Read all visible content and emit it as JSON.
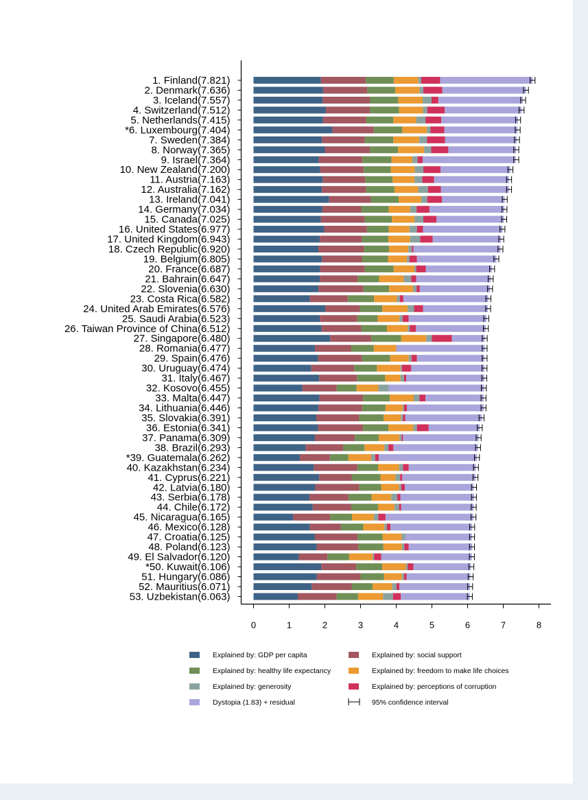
{
  "chart_data": {
    "type": "bar",
    "orientation": "horizontal",
    "stacked": true,
    "xlim": [
      0,
      8
    ],
    "x_ticks": [
      "0",
      "1",
      "2",
      "3",
      "4",
      "5",
      "6",
      "7",
      "8"
    ],
    "series": [
      {
        "name": "Explained by: GDP per capita",
        "color": "#3e6386"
      },
      {
        "name": "Explained by: social support",
        "color": "#a35760"
      },
      {
        "name": "Explained by: healthy life expectancy",
        "color": "#708f56"
      },
      {
        "name": "Explained by: freedom to make life choices",
        "color": "#ec9a33"
      },
      {
        "name": "Explained by: generosity",
        "color": "#8aa3a0"
      },
      {
        "name": "Explained by: perceptions of corruption",
        "color": "#d0315b"
      },
      {
        "name": "Dystopia (1.83) + residual",
        "color": "#aaa6dc"
      }
    ],
    "ci_legend": "95% confidence interval",
    "countries": [
      {
        "label": "1. Finland(7.821)",
        "score": 7.821,
        "values": [
          1.89,
          1.26,
          0.78,
          0.69,
          0.08,
          0.53,
          2.59
        ]
      },
      {
        "label": "2. Denmark(7.636)",
        "score": 7.636,
        "values": [
          1.95,
          1.24,
          0.78,
          0.68,
          0.11,
          0.53,
          2.35
        ]
      },
      {
        "label": "3. Iceland(7.557)",
        "score": 7.557,
        "values": [
          1.94,
          1.32,
          0.8,
          0.68,
          0.25,
          0.19,
          2.37
        ]
      },
      {
        "label": "4. Switzerland(7.512)",
        "score": 7.512,
        "values": [
          2.03,
          1.23,
          0.82,
          0.67,
          0.12,
          0.49,
          2.15
        ]
      },
      {
        "label": "5. Netherlands(7.415)",
        "score": 7.415,
        "values": [
          1.95,
          1.21,
          0.76,
          0.64,
          0.26,
          0.44,
          2.15
        ]
      },
      {
        "label": "*6. Luxembourg(7.404)",
        "score": 7.404,
        "values": [
          2.21,
          1.16,
          0.8,
          0.69,
          0.1,
          0.39,
          2.05
        ]
      },
      {
        "label": "7. Sweden(7.384)",
        "score": 7.384,
        "values": [
          1.92,
          1.2,
          0.8,
          0.72,
          0.22,
          0.51,
          2.01
        ]
      },
      {
        "label": "8. Norway(7.365)",
        "score": 7.365,
        "values": [
          2.0,
          1.26,
          0.79,
          0.73,
          0.2,
          0.48,
          1.9
        ]
      },
      {
        "label": "9. Israel(7.364)",
        "score": 7.364,
        "values": [
          1.83,
          1.22,
          0.82,
          0.58,
          0.15,
          0.14,
          2.61
        ]
      },
      {
        "label": "10. New Zealand(7.200)",
        "score": 7.2,
        "values": [
          1.87,
          1.22,
          0.76,
          0.67,
          0.24,
          0.48,
          1.96
        ]
      },
      {
        "label": "11. Austria(7.163)",
        "score": 7.163,
        "values": [
          1.94,
          1.19,
          0.77,
          0.61,
          0.22,
          0.33,
          2.1
        ]
      },
      {
        "label": "12. Australia(7.162)",
        "score": 7.162,
        "values": [
          1.92,
          1.24,
          0.79,
          0.67,
          0.27,
          0.36,
          1.91
        ]
      },
      {
        "label": "13. Ireland(7.041)",
        "score": 7.041,
        "values": [
          2.12,
          1.17,
          0.78,
          0.63,
          0.17,
          0.41,
          1.76
        ]
      },
      {
        "label": "14. Germany(7.034)",
        "score": 7.034,
        "values": [
          1.93,
          1.09,
          0.77,
          0.6,
          0.18,
          0.36,
          2.1
        ]
      },
      {
        "label": "15. Canada(7.025)",
        "score": 7.025,
        "values": [
          1.89,
          1.23,
          0.76,
          0.63,
          0.25,
          0.37,
          1.89
        ]
      },
      {
        "label": "16. United States(6.977)",
        "score": 6.977,
        "values": [
          1.98,
          1.2,
          0.61,
          0.58,
          0.21,
          0.17,
          2.23
        ]
      },
      {
        "label": "17. United Kingdom(6.943)",
        "score": 6.943,
        "values": [
          1.86,
          1.18,
          0.74,
          0.61,
          0.28,
          0.35,
          1.92
        ]
      },
      {
        "label": "18. Czech Republic(6.920)",
        "score": 6.92,
        "values": [
          1.82,
          1.28,
          0.7,
          0.54,
          0.1,
          0.04,
          2.44
        ]
      },
      {
        "label": "19. Belgium(6.805)",
        "score": 6.805,
        "values": [
          1.92,
          1.13,
          0.72,
          0.53,
          0.07,
          0.21,
          2.23
        ]
      },
      {
        "label": "20. France(6.687)",
        "score": 6.687,
        "values": [
          1.87,
          1.25,
          0.81,
          0.58,
          0.05,
          0.27,
          1.85
        ]
      },
      {
        "label": "21. Bahrain(6.647)",
        "score": 6.647,
        "values": [
          1.86,
          1.06,
          0.6,
          0.69,
          0.21,
          0.14,
          2.09
        ]
      },
      {
        "label": "22. Slovenia(6.630)",
        "score": 6.63,
        "values": [
          1.82,
          1.26,
          0.72,
          0.67,
          0.1,
          0.09,
          1.97
        ]
      },
      {
        "label": "23. Costa Rica(6.582)",
        "score": 6.582,
        "values": [
          1.58,
          1.06,
          0.74,
          0.64,
          0.08,
          0.1,
          2.38
        ]
      },
      {
        "label": "24. United Arab Emirates(6.576)",
        "score": 6.576,
        "values": [
          2.01,
          0.97,
          0.63,
          0.71,
          0.18,
          0.25,
          1.82
        ]
      },
      {
        "label": "25. Saudi Arabia(6.523)",
        "score": 6.523,
        "values": [
          1.86,
          1.05,
          0.57,
          0.61,
          0.09,
          0.17,
          2.18
        ]
      },
      {
        "label": "26. Taiwan Province of China(6.512)",
        "score": 6.512,
        "values": [
          1.91,
          1.11,
          0.72,
          0.58,
          0.06,
          0.17,
          1.96
        ]
      },
      {
        "label": "27. Singapore(6.480)",
        "score": 6.48,
        "values": [
          2.15,
          1.15,
          0.84,
          0.7,
          0.16,
          0.56,
          0.92
        ]
      },
      {
        "label": "28. Romania(6.477)",
        "score": 6.477,
        "values": [
          1.72,
          1.02,
          0.63,
          0.63,
          0.0,
          0.0,
          2.48
        ]
      },
      {
        "label": "29. Spain(6.476)",
        "score": 6.476,
        "values": [
          1.81,
          1.23,
          0.79,
          0.52,
          0.08,
          0.15,
          1.89
        ]
      },
      {
        "label": "30. Uruguay(6.474)",
        "score": 6.474,
        "values": [
          1.62,
          1.2,
          0.64,
          0.66,
          0.04,
          0.26,
          2.05
        ]
      },
      {
        "label": "31. Italy(6.467)",
        "score": 6.467,
        "values": [
          1.84,
          1.06,
          0.79,
          0.43,
          0.1,
          0.06,
          2.19
        ]
      },
      {
        "label": "32. Kosovo(6.455)",
        "score": 6.455,
        "values": [
          1.37,
          0.96,
          0.56,
          0.61,
          0.29,
          0.0,
          2.67
        ]
      },
      {
        "label": "33. Malta(6.447)",
        "score": 6.447,
        "values": [
          1.85,
          1.22,
          0.75,
          0.67,
          0.16,
          0.17,
          1.63
        ]
      },
      {
        "label": "34. Lithuania(6.446)",
        "score": 6.446,
        "values": [
          1.82,
          1.22,
          0.66,
          0.48,
          0.04,
          0.08,
          2.15
        ]
      },
      {
        "label": "35. Slovakia(6.391)",
        "score": 6.391,
        "values": [
          1.76,
          1.2,
          0.69,
          0.48,
          0.06,
          0.06,
          2.15
        ]
      },
      {
        "label": "36. Estonia(6.341)",
        "score": 6.341,
        "values": [
          1.81,
          1.26,
          0.71,
          0.7,
          0.1,
          0.33,
          1.43
        ]
      },
      {
        "label": "37. Panama(6.309)",
        "score": 6.309,
        "values": [
          1.72,
          1.12,
          0.67,
          0.58,
          0.06,
          0.04,
          2.12
        ]
      },
      {
        "label": "38. Brazil(6.293)",
        "score": 6.293,
        "values": [
          1.46,
          1.05,
          0.6,
          0.56,
          0.11,
          0.14,
          2.37
        ]
      },
      {
        "label": "*39. Guatemala(6.262)",
        "score": 6.262,
        "values": [
          1.3,
          0.84,
          0.52,
          0.64,
          0.11,
          0.1,
          2.75
        ]
      },
      {
        "label": "40. Kazakhstan(6.234)",
        "score": 6.234,
        "values": [
          1.69,
          1.22,
          0.58,
          0.59,
          0.11,
          0.16,
          1.88
        ]
      },
      {
        "label": "41. Cyprus(6.221)",
        "score": 6.221,
        "values": [
          1.84,
          0.91,
          0.81,
          0.42,
          0.13,
          0.06,
          2.05
        ]
      },
      {
        "label": "42. Latvia(6.180)",
        "score": 6.18,
        "values": [
          1.73,
          1.23,
          0.62,
          0.5,
          0.06,
          0.1,
          1.93
        ]
      },
      {
        "label": "43. Serbia(6.178)",
        "score": 6.178,
        "values": [
          1.57,
          1.09,
          0.65,
          0.55,
          0.17,
          0.09,
          2.06
        ]
      },
      {
        "label": "44. Chile(6.172)",
        "score": 6.172,
        "values": [
          1.66,
          1.08,
          0.75,
          0.46,
          0.13,
          0.06,
          2.03
        ]
      },
      {
        "label": "45. Nicaragua(6.165)",
        "score": 6.165,
        "values": [
          1.11,
          1.04,
          0.61,
          0.61,
          0.13,
          0.2,
          2.46
        ]
      },
      {
        "label": "46. Mexico(6.128)",
        "score": 6.128,
        "values": [
          1.58,
          0.87,
          0.63,
          0.59,
          0.07,
          0.1,
          2.29
        ]
      },
      {
        "label": "47. Croatia(6.125)",
        "score": 6.125,
        "values": [
          1.72,
          1.2,
          0.7,
          0.53,
          0.1,
          0.0,
          1.87
        ]
      },
      {
        "label": "48. Poland(6.123)",
        "score": 6.123,
        "values": [
          1.77,
          1.17,
          0.7,
          0.52,
          0.07,
          0.12,
          1.78
        ]
      },
      {
        "label": "49. El Salvador(6.120)",
        "score": 6.12,
        "values": [
          1.27,
          0.8,
          0.61,
          0.66,
          0.04,
          0.2,
          2.54
        ]
      },
      {
        "label": "*50. Kuwait(6.106)",
        "score": 6.106,
        "values": [
          1.9,
          0.98,
          0.73,
          0.66,
          0.05,
          0.16,
          1.61
        ]
      },
      {
        "label": "51. Hungary(6.086)",
        "score": 6.086,
        "values": [
          1.77,
          1.23,
          0.66,
          0.5,
          0.06,
          0.07,
          1.79
        ]
      },
      {
        "label": "52. Mauritius(6.071)",
        "score": 6.071,
        "values": [
          1.63,
          1.12,
          0.59,
          0.55,
          0.12,
          0.08,
          1.98
        ]
      },
      {
        "label": "53. Uzbekistan(6.063)",
        "score": 6.063,
        "values": [
          1.24,
          1.09,
          0.6,
          0.7,
          0.28,
          0.22,
          1.93
        ]
      }
    ]
  }
}
